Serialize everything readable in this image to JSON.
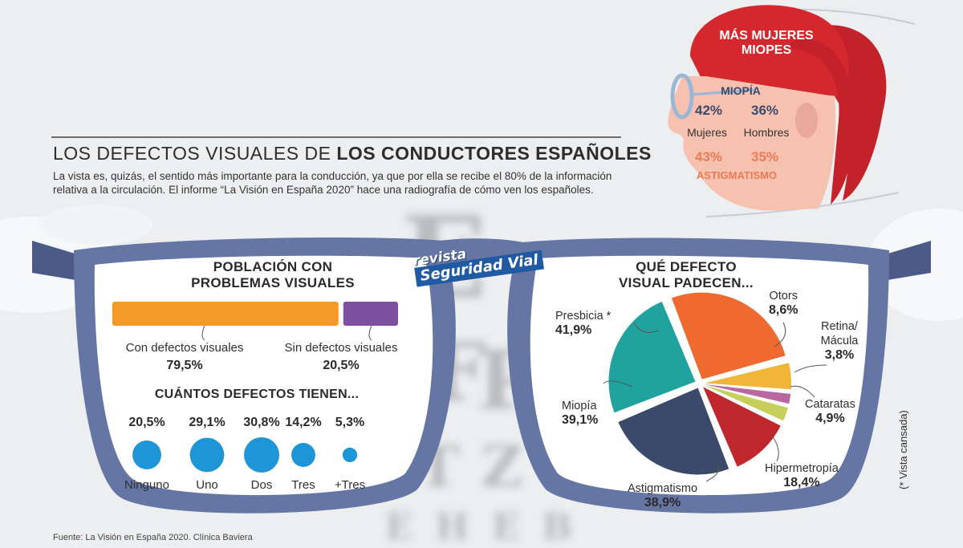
{
  "header": {
    "title_regular": "LOS DEFECTOS VISUALES DE",
    "title_bold": "LOS CONDUCTORES ESPAÑOLES",
    "intro": "La vista es, quizás, el sentido más importante para la conducción, ya que por ella se recibe el 80% de la información relativa a la circulación. El informe “La Visión en España 2020” hace una radiografía de cómo ven los españoles."
  },
  "head_panel": {
    "title_line1": "MÁS MUJERES",
    "title_line2": "MIOPES",
    "miopia_label": "MIOPÍA",
    "astigmatismo_label": "ASTIGMATISMO",
    "women_label": "Mujeres",
    "men_label": "Hombres",
    "miopia_women": "42%",
    "miopia_men": "36%",
    "astig_women": "43%",
    "astig_men": "35%"
  },
  "logo": {
    "line1": "revista",
    "line2": "Seguridad Vial"
  },
  "left_lens": {
    "title_line1": "POBLACIÓN CON",
    "title_line2": "PROBLEMAS VISUALES",
    "subtitle": "CUÁNTOS  DEFECTOS TIENEN..."
  },
  "right_lens": {
    "title_line1": "QUÉ DEFECTO",
    "title_line2": "VISUAL PADECEN..."
  },
  "footer": {
    "source": "Fuente: La Visión en España 2020. Clínica Baviera",
    "note": "(* Vista cansada)"
  },
  "colors": {
    "frame": "#6575a4",
    "frame_dark": "#4c5a87",
    "orange": "#f39a2b",
    "purple": "#7c4f9f",
    "blue": "#1d95d6",
    "hair": "#c4222a",
    "skin": "#f7c1b0"
  },
  "chart_data": [
    {
      "type": "bar",
      "title": "POBLACIÓN CON PROBLEMAS VISUALES",
      "categories": [
        "Con defectos visuales",
        "Sin defectos visuales"
      ],
      "values": [
        79.5,
        20.5
      ],
      "labels": [
        "79,5%",
        "20,5%"
      ],
      "colors": [
        "#f39a2b",
        "#7c4f9f"
      ]
    },
    {
      "type": "scatter",
      "title": "CUÁNTOS  DEFECTOS TIENEN...",
      "categories": [
        "Ninguno",
        "Uno",
        "Dos",
        "Tres",
        "+Tres"
      ],
      "values": [
        20.5,
        29.1,
        30.8,
        14.2,
        5.3
      ],
      "labels": [
        "20,5%",
        "29,1%",
        "30,8%",
        "14,2%",
        "5,3%"
      ],
      "color": "#1d95d6"
    },
    {
      "type": "pie",
      "title": "QUÉ DEFECTO VISUAL PADECEN...",
      "categories": [
        "Presbicia *",
        "Otors",
        "Retina/ Mácula",
        "Cataratas",
        "Hipermetropía",
        "Astigmatismo",
        "Miopía"
      ],
      "values": [
        41.9,
        8.6,
        3.8,
        4.9,
        18.4,
        38.9,
        39.1
      ],
      "labels": [
        "41,9%",
        "8,6%",
        "3,8%",
        "4,9%",
        "18,4%",
        "38,9%",
        "39,1%"
      ],
      "colors": [
        "#ee6a2f",
        "#f1b53a",
        "#b9679f",
        "#c6cf5a",
        "#c0272d",
        "#3b4a6b",
        "#20a39f"
      ]
    }
  ]
}
